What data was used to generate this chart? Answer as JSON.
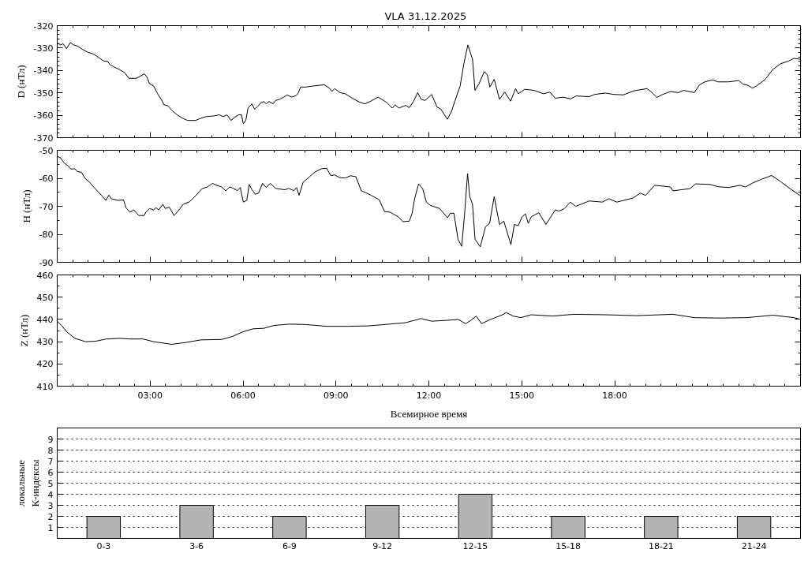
{
  "chart_data": [
    {
      "type": "line",
      "title": "VLA   31.12.2025",
      "ylabel": "D (нТл)",
      "tick_labels": "y",
      "xlim": [
        0,
        24
      ],
      "ylim": [
        -370,
        -320
      ],
      "xticks": [
        {
          "value": 0.5,
          "label": null
        },
        {
          "value": 1,
          "label": null
        },
        {
          "value": 1.5,
          "label": null
        },
        {
          "value": 2,
          "label": null
        },
        {
          "value": 2.5,
          "label": null
        },
        3,
        {
          "value": 3.5,
          "label": null
        },
        {
          "value": 4,
          "label": null
        },
        {
          "value": 4.5,
          "label": null
        },
        {
          "value": 5,
          "label": null
        },
        {
          "value": 5.5,
          "label": null
        },
        6,
        {
          "value": 6.5,
          "label": null
        },
        {
          "value": 7,
          "label": null
        },
        {
          "value": 7.5,
          "label": null
        },
        {
          "value": 8,
          "label": null
        },
        {
          "value": 8.5,
          "label": null
        },
        9,
        {
          "value": 9.5,
          "label": null
        },
        {
          "value": 10,
          "label": null
        },
        {
          "value": 10.5,
          "label": null
        },
        {
          "value": 11,
          "label": null
        },
        {
          "value": 11.5,
          "label": null
        },
        12,
        {
          "value": 12.5,
          "label": null
        },
        {
          "value": 13,
          "label": null
        },
        {
          "value": 13.5,
          "label": null
        },
        {
          "value": 14,
          "label": null
        },
        {
          "value": 14.5,
          "label": null
        },
        15,
        {
          "value": 15.5,
          "label": null
        },
        {
          "value": 16,
          "label": null
        },
        {
          "value": 16.5,
          "label": null
        },
        {
          "value": 17,
          "label": null
        },
        {
          "value": 17.5,
          "label": null
        },
        18,
        {
          "value": 18.5,
          "label": null
        },
        {
          "value": 19,
          "label": null
        },
        {
          "value": 19.5,
          "label": null
        },
        {
          "value": 20,
          "label": null
        },
        {
          "value": 20.5,
          "label": null
        },
        21,
        {
          "value": 21.5,
          "label": null
        },
        {
          "value": 22,
          "label": null
        },
        {
          "value": 22.5,
          "label": null
        },
        {
          "value": 23,
          "label": null
        },
        {
          "value": 23.5,
          "label": null
        }
      ],
      "yticks": [
        -370,
        {
          "value": -368,
          "label": null
        },
        {
          "value": -366,
          "label": null
        },
        {
          "value": -364,
          "label": null
        },
        {
          "value": -362,
          "label": null
        },
        -360,
        {
          "value": -358,
          "label": null
        },
        {
          "value": -356,
          "label": null
        },
        {
          "value": -354,
          "label": null
        },
        {
          "value": -352,
          "label": null
        },
        -350,
        {
          "value": -348,
          "label": null
        },
        {
          "value": -346,
          "label": null
        },
        {
          "value": -344,
          "label": null
        },
        {
          "value": -342,
          "label": null
        },
        -340,
        {
          "value": -338,
          "label": null
        },
        {
          "value": -336,
          "label": null
        },
        {
          "value": -334,
          "label": null
        },
        {
          "value": -332,
          "label": null
        },
        -330,
        {
          "value": -328,
          "label": null
        },
        {
          "value": -326,
          "label": null
        },
        {
          "value": -324,
          "label": null
        },
        {
          "value": -322,
          "label": null
        },
        -320
      ],
      "x": [
        0,
        0.1,
        0.19,
        0.3,
        0.42,
        0.53,
        0.65,
        0.82,
        0.99,
        1.16,
        1.33,
        1.5,
        1.63,
        1.71,
        1.84,
        2.0,
        2.18,
        2.31,
        2.43,
        2.56,
        2.69,
        2.81,
        2.9,
        2.98,
        3.11,
        3.24,
        3.36,
        3.45,
        3.58,
        3.7,
        3.87,
        4.04,
        4.21,
        4.47,
        4.64,
        4.81,
        5.06,
        5.23,
        5.36,
        5.48,
        5.61,
        5.74,
        5.86,
        5.95,
        6.01,
        6.09,
        6.16,
        6.29,
        6.37,
        6.46,
        6.58,
        6.67,
        6.75,
        6.84,
        6.97,
        7.05,
        7.18,
        7.31,
        7.43,
        7.56,
        7.69,
        7.77,
        7.86,
        8.03,
        8.28,
        8.62,
        8.79,
        8.87,
        8.96,
        9.13,
        9.3,
        9.47,
        9.72,
        9.93,
        10.1,
        10.36,
        10.48,
        10.65,
        10.82,
        10.91,
        11.03,
        11.25,
        11.37,
        11.5,
        11.64,
        11.75,
        11.88,
        12.09,
        12.26,
        12.39,
        12.6,
        12.73,
        12.86,
        13.01,
        13.13,
        13.26,
        13.41,
        13.49,
        13.62,
        13.79,
        13.89,
        13.97,
        14.11,
        14.28,
        14.45,
        14.64,
        14.8,
        14.89,
        15.1,
        15.4,
        15.7,
        15.91,
        16.08,
        16.33,
        16.58,
        16.75,
        17.18,
        17.35,
        17.69,
        17.98,
        18.28,
        18.62,
        19.04,
        19.17,
        19.36,
        19.55,
        19.8,
        20.05,
        20.23,
        20.57,
        20.74,
        20.91,
        21.16,
        21.33,
        21.67,
        22.01,
        22.14,
        22.31,
        22.45,
        22.6,
        22.86,
        23.11,
        23.36,
        23.62,
        23.79,
        24.0
      ],
      "series": [
        {
          "color": "#000000",
          "values": [
            -327.6,
            -328.6,
            -328.1,
            -330.3,
            -327.6,
            -328.6,
            -329.1,
            -330.6,
            -331.9,
            -332.6,
            -334.1,
            -335.8,
            -336.0,
            -337.5,
            -338.5,
            -339.5,
            -341.0,
            -343.5,
            -343.5,
            -343.5,
            -342.5,
            -341.5,
            -343.0,
            -345.9,
            -346.9,
            -350.4,
            -352.9,
            -355.3,
            -355.8,
            -357.8,
            -359.8,
            -361.3,
            -362.3,
            -362.3,
            -361.3,
            -360.6,
            -360.3,
            -359.8,
            -360.6,
            -359.8,
            -362.3,
            -360.8,
            -359.8,
            -359.8,
            -363.8,
            -362.3,
            -356.8,
            -354.9,
            -357.3,
            -356.3,
            -354.4,
            -353.9,
            -354.9,
            -353.9,
            -354.9,
            -353.4,
            -352.9,
            -351.9,
            -350.9,
            -351.9,
            -351.4,
            -350.4,
            -347.4,
            -347.4,
            -346.9,
            -346.4,
            -347.9,
            -349.4,
            -348.1,
            -349.9,
            -350.4,
            -351.9,
            -353.9,
            -354.9,
            -353.9,
            -351.9,
            -352.9,
            -354.4,
            -356.8,
            -355.3,
            -356.8,
            -355.6,
            -356.6,
            -353.9,
            -349.9,
            -352.9,
            -353.4,
            -350.7,
            -356.3,
            -357.3,
            -361.8,
            -358.3,
            -352.9,
            -346.9,
            -337.0,
            -328.6,
            -335.0,
            -348.9,
            -345.9,
            -340.5,
            -342.0,
            -347.4,
            -344.0,
            -352.9,
            -349.7,
            -353.7,
            -348.1,
            -350.4,
            -348.4,
            -348.9,
            -350.4,
            -349.7,
            -352.4,
            -351.9,
            -352.7,
            -351.4,
            -351.7,
            -350.7,
            -350.1,
            -350.7,
            -350.9,
            -349.1,
            -348.1,
            -349.4,
            -352.1,
            -350.7,
            -349.4,
            -349.9,
            -348.9,
            -349.9,
            -346.4,
            -345.1,
            -344.2,
            -345.1,
            -345.1,
            -344.5,
            -346.1,
            -346.7,
            -347.9,
            -346.7,
            -344.0,
            -339.5,
            -337.0,
            -335.8,
            -334.6,
            -335.0
          ]
        }
      ]
    },
    {
      "type": "line",
      "ylabel": "H (нТл)",
      "tick_labels": "y",
      "xlim": [
        0,
        24
      ],
      "ylim": [
        -90,
        -50
      ],
      "xticks": [
        {
          "value": 0.5,
          "label": null
        },
        {
          "value": 1,
          "label": null
        },
        {
          "value": 1.5,
          "label": null
        },
        {
          "value": 2,
          "label": null
        },
        {
          "value": 2.5,
          "label": null
        },
        3,
        {
          "value": 3.5,
          "label": null
        },
        {
          "value": 4,
          "label": null
        },
        {
          "value": 4.5,
          "label": null
        },
        {
          "value": 5,
          "label": null
        },
        {
          "value": 5.5,
          "label": null
        },
        6,
        {
          "value": 6.5,
          "label": null
        },
        {
          "value": 7,
          "label": null
        },
        {
          "value": 7.5,
          "label": null
        },
        {
          "value": 8,
          "label": null
        },
        {
          "value": 8.5,
          "label": null
        },
        9,
        {
          "value": 9.5,
          "label": null
        },
        {
          "value": 10,
          "label": null
        },
        {
          "value": 10.5,
          "label": null
        },
        {
          "value": 11,
          "label": null
        },
        {
          "value": 11.5,
          "label": null
        },
        12,
        {
          "value": 12.5,
          "label": null
        },
        {
          "value": 13,
          "label": null
        },
        {
          "value": 13.5,
          "label": null
        },
        {
          "value": 14,
          "label": null
        },
        {
          "value": 14.5,
          "label": null
        },
        15,
        {
          "value": 15.5,
          "label": null
        },
        {
          "value": 16,
          "label": null
        },
        {
          "value": 16.5,
          "label": null
        },
        {
          "value": 17,
          "label": null
        },
        {
          "value": 17.5,
          "label": null
        },
        18,
        {
          "value": 18.5,
          "label": null
        },
        {
          "value": 19,
          "label": null
        },
        {
          "value": 19.5,
          "label": null
        },
        {
          "value": 20,
          "label": null
        },
        {
          "value": 20.5,
          "label": null
        },
        21,
        {
          "value": 21.5,
          "label": null
        },
        {
          "value": 22,
          "label": null
        },
        {
          "value": 22.5,
          "label": null
        },
        {
          "value": 23,
          "label": null
        },
        {
          "value": 23.5,
          "label": null
        }
      ],
      "yticks": [
        -90,
        {
          "value": -85,
          "label": null
        },
        -80,
        {
          "value": -75,
          "label": null
        },
        -70,
        {
          "value": -65,
          "label": null
        },
        -60,
        {
          "value": -55,
          "label": null
        },
        -50
      ],
      "x": [
        0,
        0.1,
        0.23,
        0.36,
        0.44,
        0.57,
        0.65,
        0.78,
        0.91,
        1.03,
        1.16,
        1.33,
        1.46,
        1.57,
        1.67,
        1.75,
        1.97,
        2.14,
        2.22,
        2.35,
        2.47,
        2.64,
        2.81,
        2.86,
        2.98,
        3.11,
        3.19,
        3.28,
        3.41,
        3.49,
        3.62,
        3.77,
        3.96,
        4.08,
        4.25,
        4.38,
        4.51,
        4.68,
        4.85,
        5.02,
        5.14,
        5.31,
        5.44,
        5.57,
        5.69,
        5.82,
        5.91,
        6.01,
        6.12,
        6.2,
        6.29,
        6.4,
        6.5,
        6.63,
        6.75,
        6.88,
        7.05,
        7.22,
        7.35,
        7.47,
        7.64,
        7.73,
        7.81,
        7.94,
        8.15,
        8.32,
        8.53,
        8.7,
        8.83,
        8.96,
        9.13,
        9.3,
        9.47,
        9.64,
        9.82,
        9.97,
        10.14,
        10.27,
        10.4,
        10.57,
        10.75,
        10.91,
        11.03,
        11.16,
        11.37,
        11.46,
        11.54,
        11.67,
        11.8,
        11.92,
        12.05,
        12.35,
        12.6,
        12.69,
        12.81,
        12.94,
        13.06,
        13.15,
        13.25,
        13.32,
        13.41,
        13.49,
        13.66,
        13.83,
        13.96,
        14.11,
        14.28,
        14.42,
        14.65,
        14.76,
        14.89,
        15.01,
        15.12,
        15.21,
        15.31,
        15.55,
        15.78,
        16.08,
        16.2,
        16.37,
        16.57,
        16.74,
        17.18,
        17.6,
        17.81,
        18.07,
        18.36,
        18.58,
        18.83,
        19.0,
        19.29,
        19.8,
        19.88,
        20.14,
        20.43,
        20.61,
        21.08,
        21.33,
        21.67,
        22.05,
        22.22,
        22.43,
        22.73,
        23.07,
        23.36,
        23.66,
        23.92,
        24.0
      ],
      "series": [
        {
          "color": "#000000",
          "values": [
            -52.2,
            -52.6,
            -54.6,
            -55.6,
            -56.7,
            -56.6,
            -57.6,
            -57.8,
            -60.2,
            -61.2,
            -62.9,
            -64.9,
            -66.5,
            -67.9,
            -66.0,
            -67.3,
            -67.9,
            -67.7,
            -70.5,
            -72.1,
            -71.3,
            -73.3,
            -73.3,
            -72.1,
            -70.8,
            -71.3,
            -70.5,
            -71.3,
            -69.3,
            -70.8,
            -70.3,
            -73.3,
            -70.9,
            -69.2,
            -68.5,
            -67.3,
            -65.7,
            -63.7,
            -63.1,
            -61.8,
            -62.5,
            -63.1,
            -64.5,
            -63.1,
            -63.6,
            -64.4,
            -63.3,
            -68.5,
            -67.9,
            -62.2,
            -64.1,
            -65.7,
            -65.3,
            -61.8,
            -63.3,
            -61.8,
            -63.6,
            -63.9,
            -64.1,
            -63.6,
            -64.4,
            -63.3,
            -66.1,
            -61.4,
            -59.4,
            -57.8,
            -56.6,
            -56.4,
            -59.0,
            -58.8,
            -59.8,
            -59.9,
            -59.1,
            -59.4,
            -64.5,
            -65.2,
            -66.1,
            -66.9,
            -67.7,
            -71.9,
            -72.1,
            -73.1,
            -73.9,
            -75.5,
            -75.3,
            -72.5,
            -67.3,
            -62.0,
            -63.7,
            -68.5,
            -69.7,
            -70.8,
            -74.1,
            -72.5,
            -72.5,
            -81.7,
            -84.3,
            -73.3,
            -58.3,
            -66.5,
            -69.3,
            -81.7,
            -84.5,
            -77.3,
            -76.1,
            -66.5,
            -76.5,
            -75.3,
            -83.7,
            -76.5,
            -76.9,
            -73.7,
            -72.7,
            -76.1,
            -73.7,
            -72.3,
            -76.5,
            -71.3,
            -71.7,
            -70.9,
            -68.5,
            -70.0,
            -68.1,
            -68.5,
            -67.3,
            -68.5,
            -67.7,
            -67.1,
            -65.3,
            -66.1,
            -62.5,
            -63.1,
            -64.5,
            -64.1,
            -63.7,
            -62.0,
            -62.2,
            -63.0,
            -63.3,
            -62.5,
            -63.1,
            -61.8,
            -60.4,
            -59.0,
            -61.2,
            -63.7,
            -65.7,
            -66.3
          ]
        }
      ]
    },
    {
      "type": "line",
      "ylabel": "Z (нТл)",
      "xlabel": "Всемирное время",
      "xlim": [
        0,
        24
      ],
      "ylim": [
        410,
        460
      ],
      "xticks": [
        {
          "value": 0.5,
          "label": null
        },
        {
          "value": 1,
          "label": null
        },
        {
          "value": 1.5,
          "label": null
        },
        {
          "value": 2,
          "label": null
        },
        {
          "value": 2.5,
          "label": null
        },
        {
          "value": 3,
          "label": "03:00"
        },
        {
          "value": 3.5,
          "label": null
        },
        {
          "value": 4,
          "label": null
        },
        {
          "value": 4.5,
          "label": null
        },
        {
          "value": 5,
          "label": null
        },
        {
          "value": 5.5,
          "label": null
        },
        {
          "value": 6,
          "label": "06:00"
        },
        {
          "value": 6.5,
          "label": null
        },
        {
          "value": 7,
          "label": null
        },
        {
          "value": 7.5,
          "label": null
        },
        {
          "value": 8,
          "label": null
        },
        {
          "value": 8.5,
          "label": null
        },
        {
          "value": 9,
          "label": "09:00"
        },
        {
          "value": 9.5,
          "label": null
        },
        {
          "value": 10,
          "label": null
        },
        {
          "value": 10.5,
          "label": null
        },
        {
          "value": 11,
          "label": null
        },
        {
          "value": 11.5,
          "label": null
        },
        {
          "value": 12,
          "label": "12:00"
        },
        {
          "value": 12.5,
          "label": null
        },
        {
          "value": 13,
          "label": null
        },
        {
          "value": 13.5,
          "label": null
        },
        {
          "value": 14,
          "label": null
        },
        {
          "value": 14.5,
          "label": null
        },
        {
          "value": 15,
          "label": "15:00"
        },
        {
          "value": 15.5,
          "label": null
        },
        {
          "value": 16,
          "label": null
        },
        {
          "value": 16.5,
          "label": null
        },
        {
          "value": 17,
          "label": null
        },
        {
          "value": 17.5,
          "label": null
        },
        {
          "value": 18,
          "label": "18:00"
        },
        {
          "value": 18.5,
          "label": null
        },
        {
          "value": 19,
          "label": null
        },
        {
          "value": 19.5,
          "label": null
        },
        {
          "value": 20,
          "label": null
        },
        {
          "value": 20.5,
          "label": null
        },
        {
          "value": 21,
          "label": null
        },
        {
          "value": 21.5,
          "label": null
        },
        {
          "value": 22,
          "label": null
        },
        {
          "value": 22.5,
          "label": null
        },
        {
          "value": 23,
          "label": null
        },
        {
          "value": 23.5,
          "label": null
        }
      ],
      "yticks": [
        410,
        {
          "value": 415,
          "label": null
        },
        420,
        {
          "value": 425,
          "label": null
        },
        430,
        {
          "value": 435,
          "label": null
        },
        440,
        {
          "value": 445,
          "label": null
        },
        450,
        {
          "value": 455,
          "label": null
        },
        460
      ],
      "x": [
        0,
        0.14,
        0.31,
        0.57,
        0.91,
        1.25,
        1.58,
        2.01,
        2.35,
        2.77,
        3.11,
        3.7,
        4.13,
        4.64,
        5.31,
        5.65,
        5.99,
        6.33,
        6.67,
        7.0,
        7.52,
        8.03,
        8.7,
        9.38,
        10.06,
        10.74,
        11.24,
        11.75,
        12.09,
        12.6,
        12.94,
        13.19,
        13.36,
        13.53,
        13.7,
        13.96,
        14.38,
        14.5,
        14.72,
        14.97,
        15.31,
        15.99,
        16.67,
        17.69,
        18.7,
        19.89,
        20.57,
        21.41,
        22.26,
        23.11,
        23.79,
        24.0
      ],
      "series": [
        {
          "color": "#000000",
          "values": [
            439.2,
            437.3,
            434.4,
            431.5,
            430.0,
            430.2,
            431.2,
            431.5,
            431.2,
            431.2,
            430.0,
            428.8,
            429.6,
            430.8,
            431.0,
            432.3,
            434.4,
            435.8,
            436.0,
            437.3,
            437.9,
            437.7,
            436.9,
            436.9,
            437.1,
            437.9,
            438.5,
            440.4,
            439.2,
            439.6,
            440.0,
            438.1,
            439.6,
            441.5,
            438.1,
            439.8,
            442.1,
            443.1,
            441.5,
            440.8,
            442.1,
            441.5,
            442.3,
            442.1,
            441.7,
            442.3,
            440.8,
            440.6,
            440.8,
            441.9,
            440.8,
            440.0
          ]
        }
      ]
    },
    {
      "type": "bar",
      "ylabel": "локальные\nК-индексы",
      "categories": [
        "0-3",
        "3-6",
        "6-9",
        "9-12",
        "12-15",
        "15-18",
        "18-21",
        "21-24"
      ],
      "ylim": [
        0,
        10
      ],
      "yticks": [
        1,
        2,
        3,
        4,
        5,
        6,
        7,
        8,
        9
      ],
      "grid": "y",
      "series": [
        {
          "color": "#b4b4b4",
          "values": [
            2,
            3,
            2,
            3,
            4,
            2,
            2,
            2
          ]
        }
      ]
    }
  ]
}
